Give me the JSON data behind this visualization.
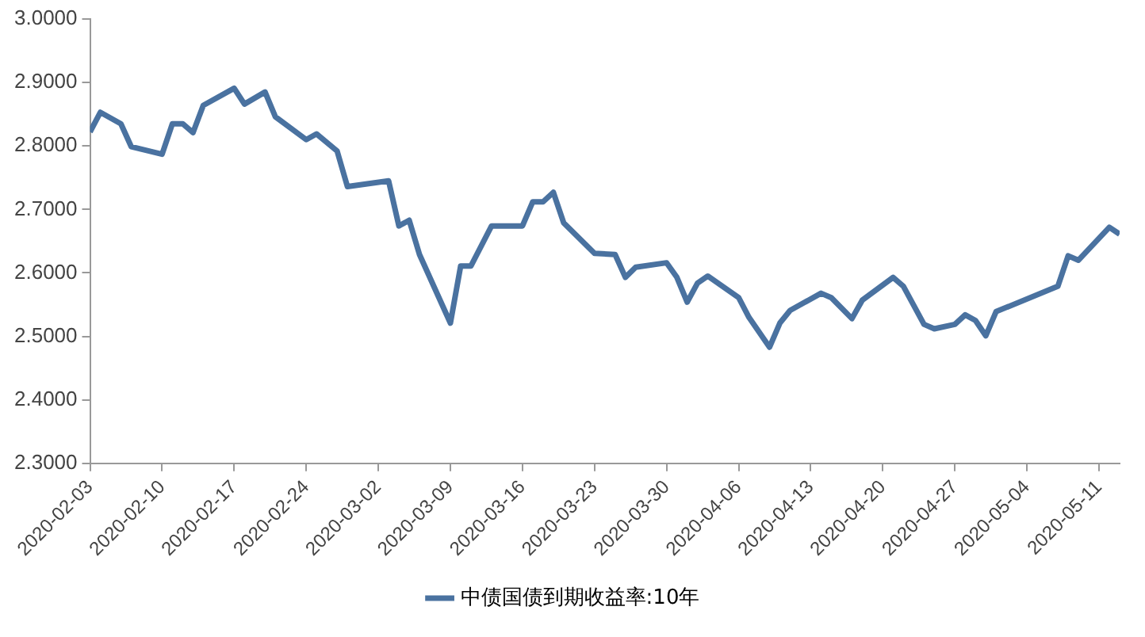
{
  "chart_data": {
    "type": "line",
    "x": [
      "2020-02-03",
      "2020-02-04",
      "2020-02-06",
      "2020-02-07",
      "2020-02-10",
      "2020-02-11",
      "2020-02-12",
      "2020-02-13",
      "2020-02-14",
      "2020-02-17",
      "2020-02-18",
      "2020-02-20",
      "2020-02-21",
      "2020-02-24",
      "2020-02-25",
      "2020-02-27",
      "2020-02-28",
      "2020-03-03",
      "2020-03-04",
      "2020-03-05",
      "2020-03-06",
      "2020-03-09",
      "2020-03-10",
      "2020-03-11",
      "2020-03-13",
      "2020-03-16",
      "2020-03-17",
      "2020-03-18",
      "2020-03-19",
      "2020-03-20",
      "2020-03-23",
      "2020-03-25",
      "2020-03-26",
      "2020-03-27",
      "2020-03-30",
      "2020-03-31",
      "2020-04-01",
      "2020-04-02",
      "2020-04-03",
      "2020-04-06",
      "2020-04-07",
      "2020-04-09",
      "2020-04-10",
      "2020-04-11",
      "2020-04-14",
      "2020-04-15",
      "2020-04-17",
      "2020-04-18",
      "2020-04-21",
      "2020-04-22",
      "2020-04-24",
      "2020-04-25",
      "2020-04-27",
      "2020-04-28",
      "2020-04-29",
      "2020-04-30",
      "2020-05-01",
      "2020-05-07",
      "2020-05-08",
      "2020-05-09",
      "2020-05-12",
      "2020-05-13"
    ],
    "series": [
      {
        "name": "中债国债到期收益率:10年",
        "color": "#4a72a0",
        "values": [
          2.822,
          2.853,
          2.835,
          2.799,
          2.787,
          2.835,
          2.835,
          2.821,
          2.864,
          2.891,
          2.866,
          2.885,
          2.846,
          2.81,
          2.819,
          2.792,
          2.736,
          2.745,
          2.674,
          2.683,
          2.629,
          2.521,
          2.611,
          2.611,
          2.674,
          2.674,
          2.712,
          2.712,
          2.727,
          2.679,
          2.631,
          2.629,
          2.593,
          2.609,
          2.616,
          2.593,
          2.554,
          2.584,
          2.595,
          2.561,
          2.53,
          2.483,
          2.521,
          2.541,
          2.568,
          2.561,
          2.528,
          2.557,
          2.593,
          2.579,
          2.519,
          2.512,
          2.519,
          2.534,
          2.525,
          2.501,
          2.539,
          2.579,
          2.627,
          2.62,
          2.672,
          2.661
        ]
      }
    ],
    "xlim": [
      "2020-02-03",
      "2020-05-13"
    ],
    "xticks": [
      "2020-02-03",
      "2020-02-10",
      "2020-02-17",
      "2020-02-24",
      "2020-03-02",
      "2020-03-09",
      "2020-03-16",
      "2020-03-23",
      "2020-03-30",
      "2020-04-06",
      "2020-04-13",
      "2020-04-20",
      "2020-04-27",
      "2020-05-04",
      "2020-05-11"
    ],
    "ylim": [
      2.3,
      3.0
    ],
    "yticks": [
      {
        "value": 2.3,
        "label": "2.3000"
      },
      {
        "value": 2.4,
        "label": "2.4000"
      },
      {
        "value": 2.5,
        "label": "2.5000"
      },
      {
        "value": 2.6,
        "label": "2.6000"
      },
      {
        "value": 2.7,
        "label": "2.7000"
      },
      {
        "value": 2.8,
        "label": "2.8000"
      },
      {
        "value": 2.9,
        "label": "2.9000"
      },
      {
        "value": 3.0,
        "label": "3.0000"
      }
    ],
    "grid": false,
    "legend": "bottom",
    "marker": "none",
    "line_style": "solid"
  }
}
